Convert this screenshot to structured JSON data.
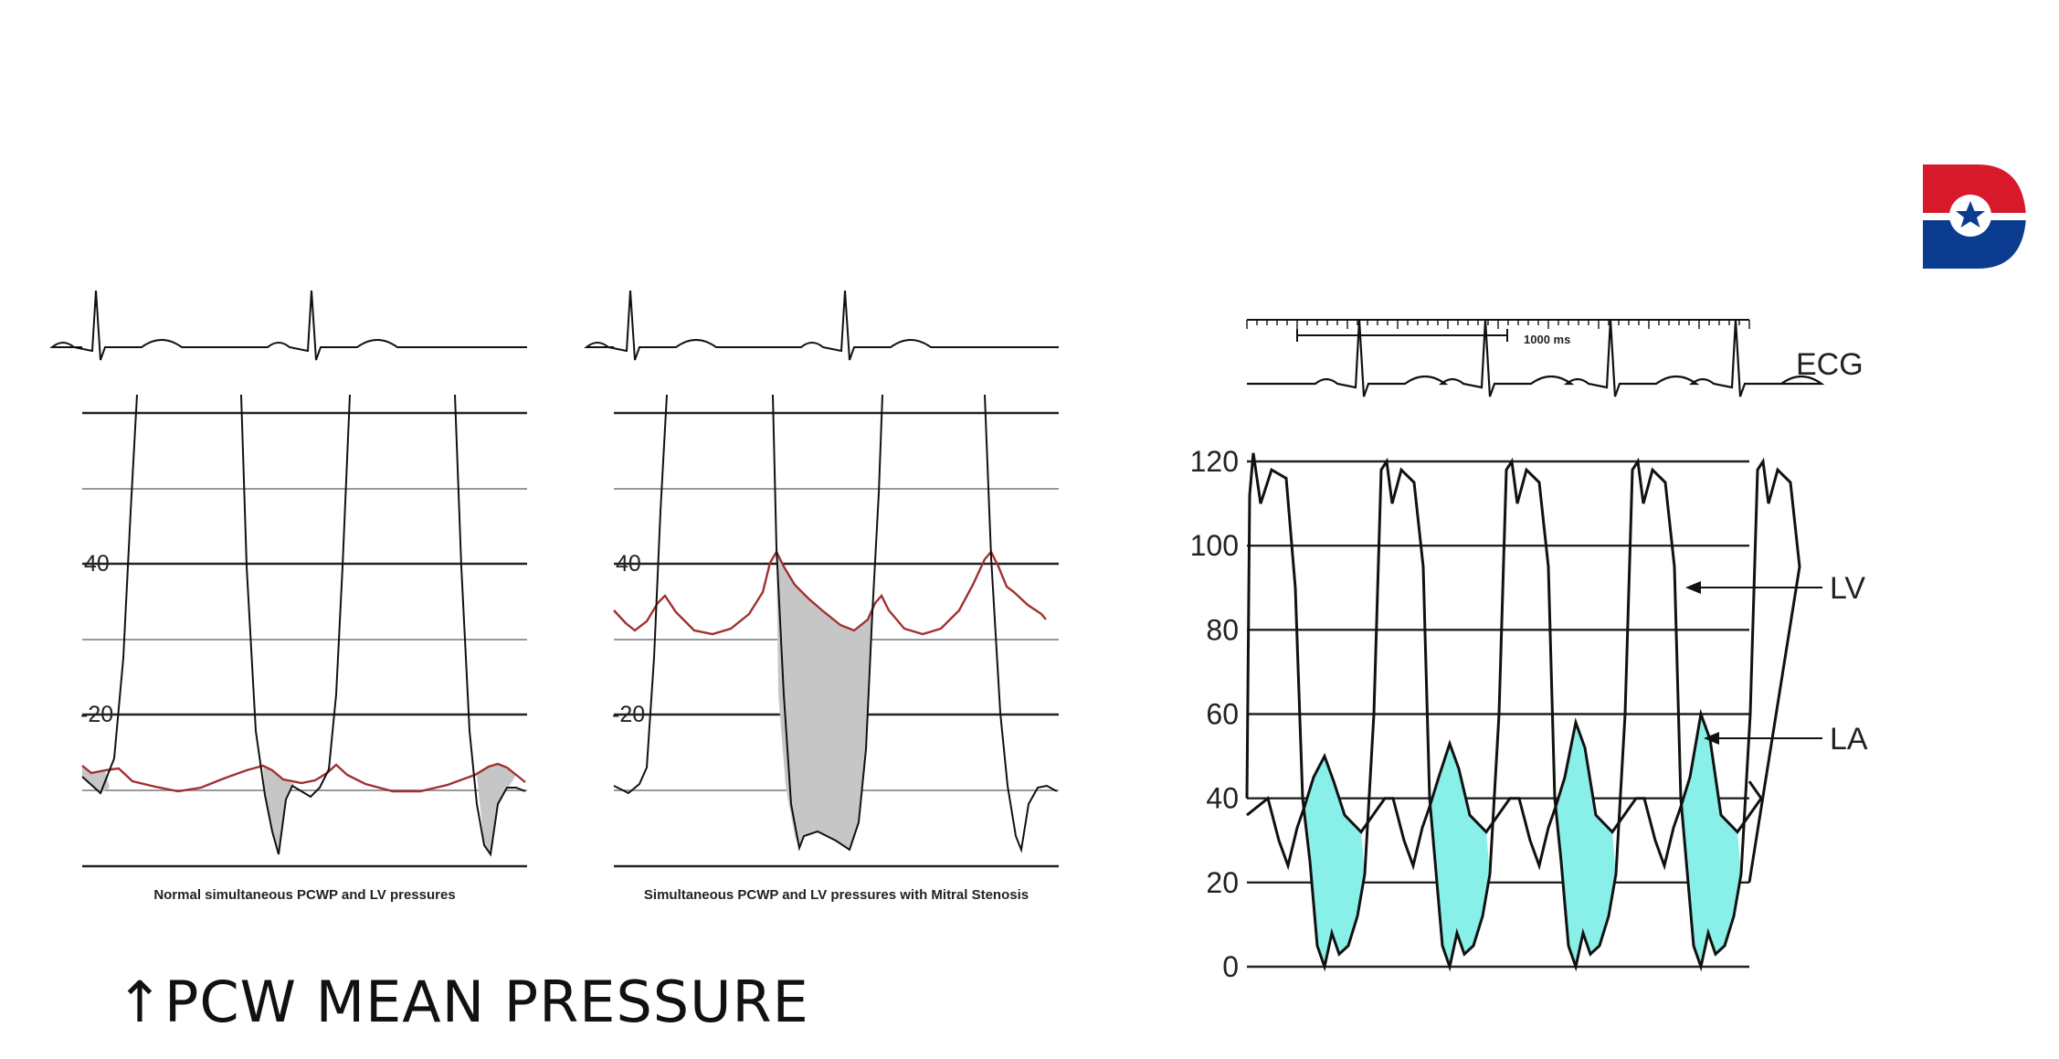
{
  "slide_title": "↑PCW MEAN PRESSURE",
  "logo_icon": "texas-flag-d-logo",
  "colors": {
    "pcwp": "#a03030",
    "lv": "#111111",
    "shade_gray": "#c6c6c6",
    "shade_cyan": "#88f0e8",
    "grid_dark": "#222222",
    "grid_light": "#999999"
  },
  "chart_data": [
    {
      "type": "line",
      "caption": "Normal simultaneous PCWP and LV pressures",
      "y_tick_labels": [
        "40",
        "-20"
      ],
      "series_present": [
        "ECG",
        "LV",
        "PCWP"
      ],
      "shaded": "gray",
      "condition": "normal"
    },
    {
      "type": "line",
      "caption": "Simultaneous PCWP and LV pressures with Mitral Stenosis",
      "y_tick_labels": [
        "40",
        "-20"
      ],
      "series_present": [
        "ECG",
        "LV",
        "PCWP"
      ],
      "shaded": "gray",
      "condition": "mitral_stenosis"
    },
    {
      "type": "line",
      "y_ticks": [
        0,
        20,
        40,
        60,
        80,
        100,
        120
      ],
      "ylim": [
        0,
        120
      ],
      "scale_label": "1000 ms",
      "series_labels": {
        "ecg": "ECG",
        "lv": "LV",
        "la": "LA"
      },
      "lv_peak_approx": 120,
      "la_peaks_approx": [
        50,
        53,
        58,
        60
      ],
      "shaded": "cyan",
      "beats": 4
    }
  ]
}
